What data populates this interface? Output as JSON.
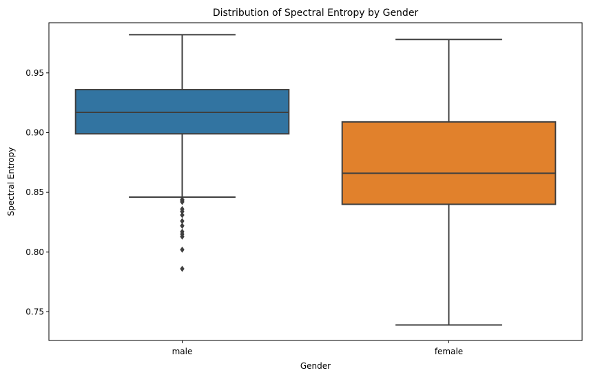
{
  "chart_data": {
    "type": "box",
    "title": "Distribution of Spectral Entropy by Gender",
    "xlabel": "Gender",
    "ylabel": "Spectral Entropy",
    "ylim": [
      0.726,
      0.992
    ],
    "yticks": [
      0.75,
      0.8,
      0.85,
      0.9,
      0.95
    ],
    "ytick_labels": [
      "0.75",
      "0.80",
      "0.85",
      "0.90",
      "0.95"
    ],
    "grid": false,
    "categories": [
      "male",
      "female"
    ],
    "series": [
      {
        "category": "male",
        "color": "#3274a1",
        "whisker_low": 0.846,
        "q1": 0.899,
        "median": 0.917,
        "q3": 0.936,
        "whisker_high": 0.982,
        "outliers": [
          0.844,
          0.843,
          0.842,
          0.836,
          0.834,
          0.831,
          0.826,
          0.822,
          0.817,
          0.815,
          0.813,
          0.802,
          0.786
        ]
      },
      {
        "category": "female",
        "color": "#e1812c",
        "whisker_low": 0.739,
        "q1": 0.84,
        "median": 0.866,
        "q3": 0.909,
        "whisker_high": 0.978,
        "outliers": []
      }
    ]
  }
}
